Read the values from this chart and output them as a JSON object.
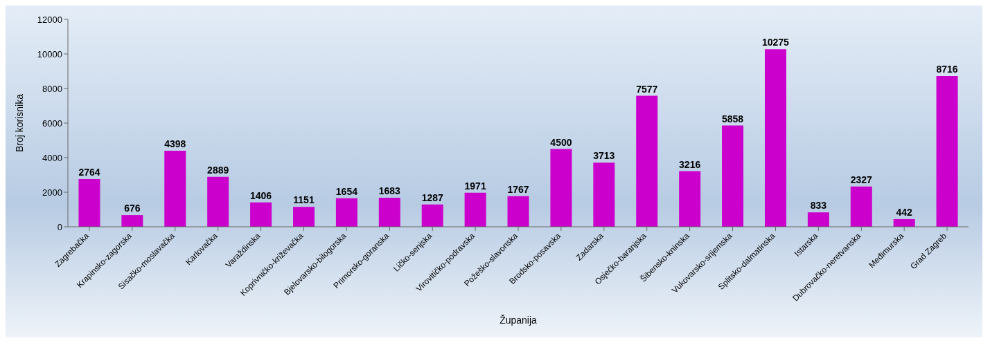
{
  "chart_data": {
    "type": "bar",
    "xlabel": "Županija",
    "ylabel": "Broj korisnika",
    "categories": [
      "Zagrebačka",
      "Krapinsko-zagorska",
      "Sisačko-moslavačka",
      "Karlovačka",
      "Varaždinska",
      "Koprivničko-križevačka",
      "Bjelovarsko-bilogorska",
      "Primorsko-goranska",
      "Ličko-senjska",
      "Virovitičko-podravska",
      "Požeško-slavonska",
      "Brodsko-posavska",
      "Zadarska",
      "Osječko-baranjska",
      "Šibensko-kninska",
      "Vukovarsko-srijemska",
      "Splitsko-dalmatinska",
      "Istarska",
      "Dubrovačko-neretvanska",
      "Međimurska",
      "Grad Zagreb"
    ],
    "values": [
      2764,
      676,
      4398,
      2889,
      1406,
      1151,
      1654,
      1683,
      1287,
      1971,
      1767,
      4500,
      3713,
      7577,
      3216,
      5858,
      10275,
      833,
      2327,
      442,
      8716
    ],
    "color": "#cc00cc",
    "ylim": [
      0,
      12000
    ],
    "yticks": [
      0,
      2000,
      4000,
      6000,
      8000,
      10000,
      12000
    ],
    "grid": false,
    "data_labels": true,
    "legend": false
  }
}
